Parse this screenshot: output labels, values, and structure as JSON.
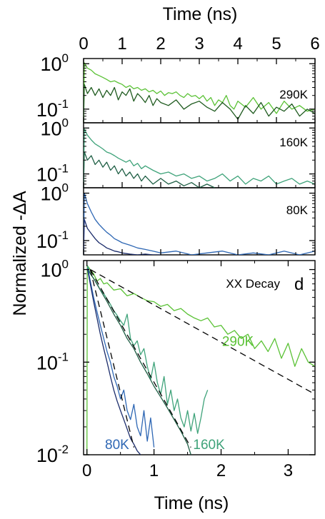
{
  "colors": {
    "axis": "#000000",
    "green_light": "#5BC236",
    "green_dark": "#1E5A1E",
    "teal_light": "#3FA37A",
    "teal_dark": "#1F5F45",
    "blue_light": "#2E67B4",
    "blue_dark": "#1B2C6B",
    "fit": "#000000"
  },
  "figure": {
    "ylabel": "Normalized -ΔA"
  },
  "chart_data": [
    {
      "type": "line",
      "panel": "top",
      "label": "290K",
      "xlabel": "Time (ns)",
      "x_axis_position": "top",
      "xlim": [
        0,
        6
      ],
      "xticks": [
        "0",
        "1",
        "2",
        "3",
        "4",
        "5",
        "6"
      ],
      "yscale": "log",
      "ylim": [
        0.05,
        1.3
      ],
      "yticks": [
        {
          "v": 1,
          "base": "10",
          "exp": "0"
        },
        {
          "v": 0.1,
          "base": "10",
          "exp": "-1"
        }
      ],
      "series": [
        {
          "color": "green_light",
          "x": [
            0,
            0.02,
            0.1,
            0.2,
            0.3,
            0.4,
            0.5,
            0.6,
            0.7,
            0.8,
            0.9,
            1.0,
            1.1,
            1.2,
            1.3,
            1.4,
            1.5,
            1.6,
            1.7,
            1.8,
            1.9,
            2.0,
            2.1,
            2.2,
            2.3,
            2.4,
            2.5,
            2.6,
            2.7,
            2.8,
            2.9,
            3.0,
            3.1,
            3.2,
            3.3,
            3.4,
            3.5,
            3.6,
            3.7,
            3.8,
            3.9,
            4.0,
            4.2,
            4.4,
            4.6,
            4.8,
            5.0,
            5.2,
            5.4,
            5.6,
            5.8,
            6.0
          ],
          "y": [
            0.05,
            1.05,
            0.8,
            0.72,
            0.6,
            0.55,
            0.5,
            0.45,
            0.4,
            0.42,
            0.38,
            0.35,
            0.3,
            0.33,
            0.28,
            0.3,
            0.26,
            0.28,
            0.24,
            0.26,
            0.22,
            0.25,
            0.2,
            0.23,
            0.22,
            0.24,
            0.2,
            0.18,
            0.22,
            0.19,
            0.2,
            0.17,
            0.2,
            0.15,
            0.18,
            0.12,
            0.16,
            0.14,
            0.2,
            0.12,
            0.1,
            0.15,
            0.11,
            0.18,
            0.1,
            0.14,
            0.08,
            0.15,
            0.1,
            0.12,
            0.09,
            0.1
          ]
        },
        {
          "color": "green_dark",
          "x": [
            0,
            0.02,
            0.1,
            0.2,
            0.3,
            0.4,
            0.5,
            0.6,
            0.7,
            0.8,
            0.9,
            1.0,
            1.1,
            1.2,
            1.3,
            1.4,
            1.5,
            1.6,
            1.7,
            1.8,
            1.9,
            2.0,
            2.2,
            2.4,
            2.6,
            2.8,
            3.0,
            3.2,
            3.4,
            3.6,
            3.8,
            4.0,
            4.2,
            4.4,
            4.6,
            4.8,
            5.0,
            5.2,
            5.4,
            5.6,
            5.8,
            6.0
          ],
          "y": [
            0.05,
            0.35,
            0.22,
            0.3,
            0.2,
            0.28,
            0.18,
            0.26,
            0.2,
            0.3,
            0.16,
            0.24,
            0.2,
            0.28,
            0.15,
            0.22,
            0.18,
            0.14,
            0.2,
            0.12,
            0.17,
            0.14,
            0.12,
            0.16,
            0.1,
            0.13,
            0.15,
            0.11,
            0.09,
            0.14,
            0.1,
            0.06,
            0.12,
            0.08,
            0.14,
            0.07,
            0.11,
            0.09,
            0.13,
            0.07,
            0.1,
            0.08
          ]
        }
      ]
    },
    {
      "type": "line",
      "panel": "upper-middle",
      "label": "160K",
      "xlim": [
        0,
        6
      ],
      "yscale": "log",
      "ylim": [
        0.05,
        1.3
      ],
      "yticks": [
        {
          "v": 1,
          "base": "10",
          "exp": "0"
        },
        {
          "v": 0.1,
          "base": "10",
          "exp": "-1"
        }
      ],
      "series": [
        {
          "color": "teal_light",
          "x": [
            0,
            0.02,
            0.1,
            0.2,
            0.3,
            0.4,
            0.5,
            0.6,
            0.7,
            0.8,
            0.9,
            1.0,
            1.1,
            1.2,
            1.3,
            1.4,
            1.5,
            1.6,
            1.8,
            2.0,
            2.2,
            2.4,
            2.6,
            2.8,
            3.0,
            3.2,
            3.4,
            3.6,
            3.8,
            4.0,
            4.2,
            4.4,
            4.6,
            4.8,
            5.0,
            5.2,
            5.4,
            5.6,
            5.8,
            6.0
          ],
          "y": [
            0.05,
            0.95,
            0.7,
            0.55,
            0.45,
            0.4,
            0.35,
            0.3,
            0.28,
            0.25,
            0.22,
            0.2,
            0.18,
            0.2,
            0.15,
            0.17,
            0.13,
            0.15,
            0.12,
            0.1,
            0.11,
            0.09,
            0.1,
            0.08,
            0.09,
            0.07,
            0.08,
            0.1,
            0.07,
            0.09,
            0.06,
            0.08,
            0.07,
            0.09,
            0.06,
            0.07,
            0.08,
            0.06,
            0.07,
            0.06
          ]
        },
        {
          "color": "teal_dark",
          "x": [
            0,
            0.02,
            0.1,
            0.2,
            0.3,
            0.4,
            0.5,
            0.6,
            0.7,
            0.8,
            0.9,
            1.0,
            1.1,
            1.2,
            1.3,
            1.4,
            1.5,
            1.6,
            1.8,
            2.0,
            2.2,
            2.4,
            2.6,
            2.8,
            3.0,
            3.2,
            3.4
          ],
          "y": [
            0.05,
            0.3,
            0.2,
            0.25,
            0.16,
            0.2,
            0.14,
            0.18,
            0.12,
            0.15,
            0.1,
            0.13,
            0.09,
            0.11,
            0.08,
            0.1,
            0.07,
            0.09,
            0.06,
            0.08,
            0.06,
            0.07,
            0.055,
            0.065,
            0.05,
            0.06,
            0.05
          ]
        }
      ]
    },
    {
      "type": "line",
      "panel": "lower-middle",
      "label": "80K",
      "xlim": [
        0,
        6
      ],
      "yscale": "log",
      "ylim": [
        0.05,
        1.3
      ],
      "yticks": [
        {
          "v": 1,
          "base": "10",
          "exp": "0"
        },
        {
          "v": 0.1,
          "base": "10",
          "exp": "-1"
        }
      ],
      "series": [
        {
          "color": "blue_light",
          "x": [
            0,
            0.02,
            0.1,
            0.2,
            0.3,
            0.4,
            0.5,
            0.6,
            0.7,
            0.8,
            0.9,
            1.0,
            1.2,
            1.4,
            1.6,
            1.8,
            2.0,
            2.4,
            2.8,
            3.2,
            3.6,
            4.0,
            4.4,
            4.8,
            5.2,
            5.6,
            6.0
          ],
          "y": [
            0.05,
            1.0,
            0.6,
            0.4,
            0.28,
            0.22,
            0.18,
            0.15,
            0.13,
            0.11,
            0.1,
            0.09,
            0.08,
            0.07,
            0.065,
            0.06,
            0.055,
            0.06,
            0.05,
            0.055,
            0.06,
            0.05,
            0.055,
            0.05,
            0.06,
            0.05,
            0.06
          ]
        },
        {
          "color": "blue_dark",
          "x": [
            0,
            0.02,
            0.1,
            0.2,
            0.3,
            0.4,
            0.5,
            0.6,
            0.7,
            0.8,
            0.9,
            1.0,
            1.2,
            1.4,
            1.6,
            1.8,
            2.0
          ],
          "y": [
            0.05,
            0.28,
            0.18,
            0.14,
            0.11,
            0.09,
            0.08,
            0.07,
            0.065,
            0.06,
            0.058,
            0.055,
            0.052,
            0.05,
            0.052,
            0.05,
            0.05
          ]
        }
      ]
    },
    {
      "type": "line",
      "panel": "bottom",
      "label": "XX Decay",
      "panel_letter": "d",
      "xlabel": "Time (ns)",
      "xlim": [
        -0.05,
        3.4
      ],
      "xticks": [
        "0",
        "1",
        "2",
        "3"
      ],
      "yscale": "log",
      "ylim": [
        0.01,
        1.25
      ],
      "yticks": [
        {
          "v": 1,
          "base": "10",
          "exp": "0"
        },
        {
          "v": 0.1,
          "base": "10",
          "exp": "-1"
        },
        {
          "v": 0.01,
          "base": "10",
          "exp": "-2"
        }
      ],
      "annotations": [
        {
          "text": "290K",
          "x": 2.25,
          "y": 0.15,
          "color": "green_light"
        },
        {
          "text": "160K",
          "x": 1.82,
          "y": 0.0115,
          "color": "teal_light"
        },
        {
          "text": "80K",
          "x": 0.45,
          "y": 0.0115,
          "color": "blue_light"
        }
      ],
      "series": [
        {
          "color": "green_light",
          "x": [
            0,
            0.005,
            0.05,
            0.1,
            0.15,
            0.2,
            0.25,
            0.3,
            0.4,
            0.5,
            0.6,
            0.7,
            0.8,
            0.9,
            1.0,
            1.1,
            1.2,
            1.3,
            1.4,
            1.5,
            1.6,
            1.7,
            1.8,
            1.9,
            2.0,
            2.1,
            2.2,
            2.3,
            2.4,
            2.5,
            2.6,
            2.7,
            2.8,
            2.9,
            3.0,
            3.1,
            3.2,
            3.3,
            3.4
          ],
          "y": [
            0.01,
            1.1,
            1.0,
            0.9,
            0.75,
            0.8,
            0.7,
            0.72,
            0.6,
            0.62,
            0.52,
            0.55,
            0.5,
            0.46,
            0.45,
            0.4,
            0.42,
            0.36,
            0.38,
            0.33,
            0.3,
            0.28,
            0.3,
            0.24,
            0.25,
            0.2,
            0.22,
            0.18,
            0.2,
            0.14,
            0.17,
            0.13,
            0.18,
            0.11,
            0.16,
            0.09,
            0.14,
            0.1,
            0.09
          ]
        },
        {
          "color": "teal_light",
          "x": [
            0.01,
            0.05,
            0.1,
            0.15,
            0.2,
            0.25,
            0.3,
            0.35,
            0.4,
            0.45,
            0.5,
            0.55,
            0.6,
            0.65,
            0.7,
            0.75,
            0.8,
            0.85,
            0.9,
            0.95,
            1.0,
            1.05,
            1.1,
            1.15,
            1.2,
            1.25,
            1.3,
            1.35,
            1.4,
            1.45,
            1.5,
            1.55,
            1.6,
            1.65,
            1.7,
            1.75,
            1.8
          ],
          "y": [
            1.1,
            0.9,
            0.8,
            0.7,
            0.6,
            0.55,
            0.48,
            0.42,
            0.36,
            0.32,
            0.28,
            0.25,
            0.33,
            0.18,
            0.15,
            0.17,
            0.12,
            0.14,
            0.09,
            0.065,
            0.1,
            0.06,
            0.045,
            0.07,
            0.035,
            0.05,
            0.03,
            0.04,
            0.025,
            0.02,
            0.03,
            0.018,
            0.028,
            0.017,
            0.025,
            0.04,
            0.05
          ]
        },
        {
          "color": "teal_dark",
          "x": [
            0.01,
            0.1,
            0.2,
            0.3,
            0.4,
            0.5,
            0.6,
            0.7,
            0.8,
            0.9,
            1.0,
            1.1,
            1.2,
            1.3,
            1.4,
            1.5,
            1.55
          ],
          "y": [
            1.0,
            0.8,
            0.6,
            0.45,
            0.33,
            0.25,
            0.18,
            0.14,
            0.1,
            0.075,
            0.055,
            0.042,
            0.032,
            0.024,
            0.018,
            0.013,
            0.01
          ]
        },
        {
          "color": "blue_light",
          "x": [
            0.01,
            0.05,
            0.1,
            0.15,
            0.2,
            0.25,
            0.3,
            0.35,
            0.4,
            0.45,
            0.5,
            0.55,
            0.6,
            0.65,
            0.7,
            0.75,
            0.8,
            0.85,
            0.9,
            0.95,
            1.0
          ],
          "y": [
            1.05,
            0.75,
            0.5,
            0.35,
            0.25,
            0.18,
            0.13,
            0.1,
            0.07,
            0.055,
            0.04,
            0.05,
            0.03,
            0.024,
            0.035,
            0.02,
            0.016,
            0.03,
            0.014,
            0.025,
            0.012
          ]
        },
        {
          "color": "blue_dark",
          "x": [
            0.01,
            0.05,
            0.1,
            0.15,
            0.2,
            0.25,
            0.3,
            0.35,
            0.4,
            0.45,
            0.5,
            0.55,
            0.6,
            0.65,
            0.7,
            0.75,
            0.8
          ],
          "y": [
            1.0,
            0.7,
            0.45,
            0.3,
            0.2,
            0.14,
            0.1,
            0.07,
            0.05,
            0.038,
            0.03,
            0.024,
            0.019,
            0.015,
            0.013,
            0.011,
            0.01
          ]
        }
      ],
      "fits": [
        {
          "x": [
            0.05,
            3.4
          ],
          "y": [
            1.0,
            0.045
          ]
        },
        {
          "x": [
            0.05,
            1.55
          ],
          "y": [
            1.0,
            0.012
          ]
        },
        {
          "x": [
            0.05,
            0.7
          ],
          "y": [
            1.0,
            0.012
          ]
        }
      ]
    }
  ]
}
